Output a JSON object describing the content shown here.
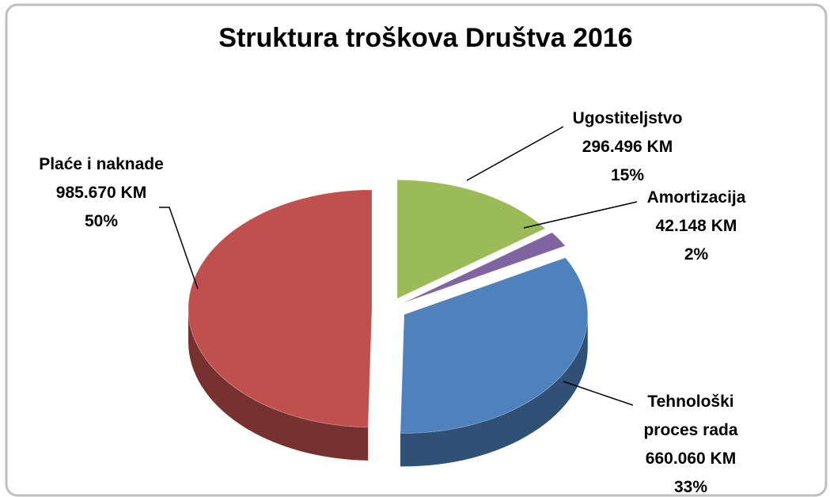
{
  "chart_data": {
    "type": "pie",
    "title": "Struktura troškova Društva 2016",
    "categories": [
      "Ugostiteljstvo",
      "Amortizacija",
      "Tehnološki proces rada",
      "Plaće i naknade"
    ],
    "values": [
      296496,
      42148,
      660060,
      985670
    ],
    "value_labels": [
      "296.496 KM",
      "42.148 KM",
      "660.060 KM",
      "985.670 KM"
    ],
    "percent_labels": [
      "15%",
      "2%",
      "33%",
      "50%"
    ],
    "colors": [
      "#9bbb59",
      "#8064a2",
      "#4f81bd",
      "#c0504d"
    ]
  }
}
